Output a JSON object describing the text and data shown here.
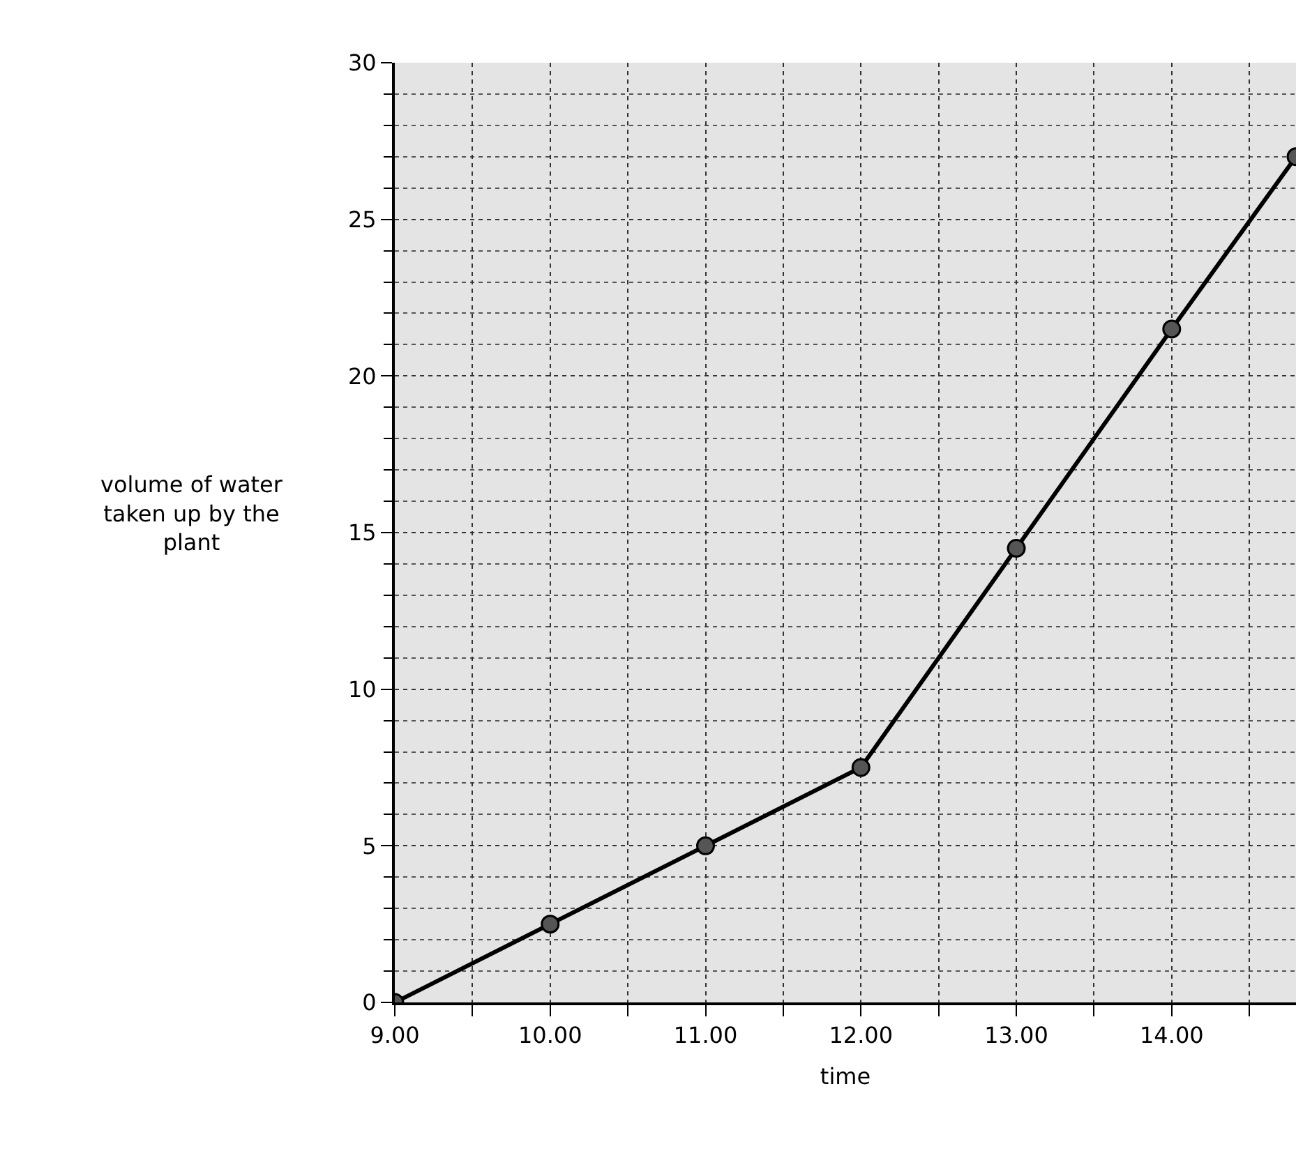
{
  "chart_data": {
    "type": "line",
    "xlabel": "time",
    "ylabel": "volume of water\ntaken up by the\nplant",
    "x": [
      9,
      10,
      11,
      12,
      13,
      14,
      14.8
    ],
    "series": [
      {
        "color": "#000000",
        "values": [
          0,
          2.5,
          5,
          7.5,
          14.5,
          21.5,
          27
        ]
      }
    ],
    "xlim": [
      9,
      14.8
    ],
    "ylim": [
      0,
      30
    ],
    "xticks": [
      {
        "value": 9,
        "label": "9.00"
      },
      {
        "value": 9.5,
        "label": null
      },
      {
        "value": 10,
        "label": "10.00"
      },
      {
        "value": 10.5,
        "label": null
      },
      {
        "value": 11,
        "label": "11.00"
      },
      {
        "value": 11.5,
        "label": null
      },
      {
        "value": 12,
        "label": "12.00"
      },
      {
        "value": 12.5,
        "label": null
      },
      {
        "value": 13,
        "label": "13.00"
      },
      {
        "value": 13.5,
        "label": null
      },
      {
        "value": 14,
        "label": "14.00"
      },
      {
        "value": 14.5,
        "label": null
      }
    ],
    "yticks": [
      0,
      5,
      10,
      15,
      20,
      25,
      30
    ],
    "grid": true,
    "marker": "circle",
    "line_style": "solid",
    "legend": false
  }
}
